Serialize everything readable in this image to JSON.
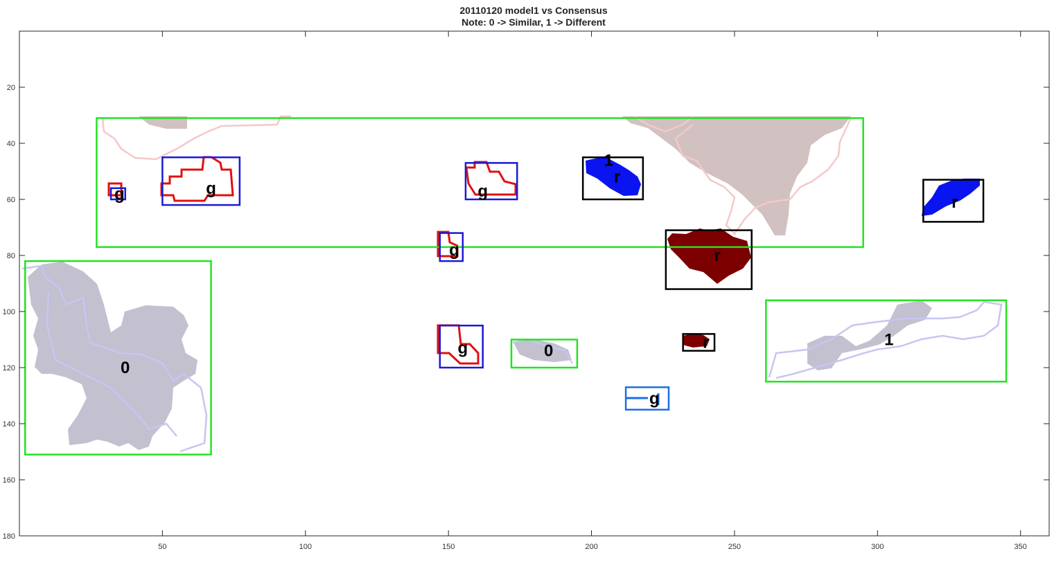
{
  "chart_data": {
    "type": "image-overlay",
    "title": "20110120 model1 vs Consensus",
    "subtitle": "Note: 0 -> Similar, 1 -> Different",
    "xlim": [
      0,
      360
    ],
    "ylim": [
      180,
      0
    ],
    "xticks": [
      50,
      100,
      150,
      200,
      250,
      300,
      350
    ],
    "yticks": [
      20,
      40,
      60,
      80,
      100,
      120,
      140,
      160,
      180
    ],
    "grid": false,
    "colors": {
      "green_box": "#22e322",
      "blue_box": "#1a1ad6",
      "black_box": "#000000",
      "lightblue_box": "#1a6fe6",
      "red_outline": "#e01010",
      "blue_fill": "#0a14f0",
      "darkred_fill": "#7d0000",
      "gray_fill": "#c3c0cf",
      "pinkgray_fill": "#d1c1c1",
      "pink_outline": "#f5c8c8",
      "lavender_outline": "#c6c6f2"
    },
    "regions": [
      {
        "label": "0",
        "box": "green",
        "x": [
          2,
          67
        ],
        "y": [
          82,
          151
        ],
        "label_at": [
          37,
          120
        ]
      },
      {
        "label": "0",
        "box": "green",
        "x": [
          172,
          195
        ],
        "y": [
          110,
          120
        ],
        "label_at": [
          185,
          114
        ]
      },
      {
        "label": "1",
        "box": "green",
        "x": [
          261,
          345
        ],
        "y": [
          96,
          125
        ],
        "label_at": [
          304,
          110
        ]
      },
      {
        "label": "g",
        "box": "green",
        "x": [
          27,
          295
        ],
        "y": [
          31,
          77
        ],
        "label_at": null
      },
      {
        "label": "g",
        "box": "blue",
        "x": [
          32,
          37
        ],
        "y": [
          56,
          60
        ],
        "label_at": [
          35,
          58
        ]
      },
      {
        "label": "g",
        "box": "blue",
        "x": [
          50,
          77
        ],
        "y": [
          45,
          62
        ],
        "label_at": [
          67,
          56
        ]
      },
      {
        "label": "g",
        "box": "blue",
        "x": [
          156,
          174
        ],
        "y": [
          47,
          60
        ],
        "label_at": [
          162,
          57
        ]
      },
      {
        "label": "g",
        "box": "blue",
        "x": [
          147,
          155
        ],
        "y": [
          72,
          82
        ],
        "label_at": [
          152,
          78
        ]
      },
      {
        "label": "g",
        "box": "blue",
        "x": [
          147,
          162
        ],
        "y": [
          105,
          120
        ],
        "label_at": [
          155,
          113
        ]
      },
      {
        "label": "g",
        "box": "lightblue",
        "x": [
          212,
          227
        ],
        "y": [
          127,
          135
        ],
        "label_at": [
          222,
          131
        ]
      },
      {
        "label": "r",
        "box": "black",
        "x": [
          197,
          218
        ],
        "y": [
          45,
          60
        ],
        "label_at": [
          209,
          52
        ]
      },
      {
        "label": "1",
        "box": "black",
        "x": null,
        "y": null,
        "label_at": [
          206,
          46
        ]
      },
      {
        "label": "r",
        "box": "black",
        "x": [
          316,
          337
        ],
        "y": [
          53,
          68
        ],
        "label_at": [
          327,
          61
        ]
      },
      {
        "label": "r",
        "box": "black",
        "x": [
          226,
          256
        ],
        "y": [
          71,
          92
        ],
        "label_at": [
          244,
          80
        ]
      },
      {
        "label": "r",
        "box": "black",
        "x": [
          232,
          243
        ],
        "y": [
          108,
          114
        ],
        "label_at": [
          240,
          111
        ]
      }
    ]
  }
}
